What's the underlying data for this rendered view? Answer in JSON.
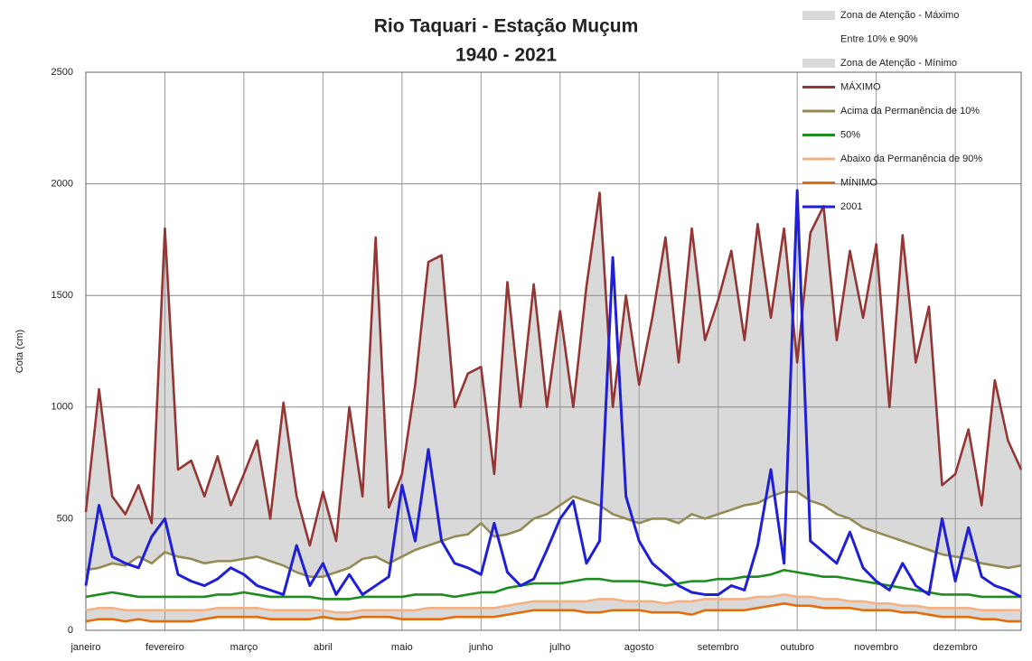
{
  "chart_data": {
    "type": "line",
    "title": "Rio Taquari - Estação Muçum",
    "subtitle": "1940 - 2021",
    "y_label": "Cota (cm)",
    "ylim": [
      0,
      2500
    ],
    "yticks": [
      0,
      500,
      1000,
      1500,
      2000,
      2500
    ],
    "grid": true,
    "legend": "top-right",
    "categories": [
      "janeiro",
      null,
      null,
      null,
      null,
      null,
      "fevereiro",
      null,
      null,
      null,
      null,
      null,
      "março",
      null,
      null,
      null,
      null,
      null,
      "abril",
      null,
      null,
      null,
      null,
      null,
      "maio",
      null,
      null,
      null,
      null,
      null,
      "junho",
      null,
      null,
      null,
      null,
      null,
      "julho",
      null,
      null,
      null,
      null,
      null,
      "agosto",
      null,
      null,
      null,
      null,
      null,
      "setembro",
      null,
      null,
      null,
      null,
      null,
      "outubro",
      null,
      null,
      null,
      null,
      null,
      "novembro",
      null,
      null,
      null,
      null,
      null,
      "dezembro",
      null,
      null,
      null,
      null,
      null
    ],
    "zones": [
      {
        "name": "Zona de Atenção - Máximo",
        "color": "#d9d9d9"
      },
      {
        "name": "Zona de Atenção - Mínimo",
        "color": "#d9d9d9"
      }
    ],
    "zone_note": "Entre 10% e 90%",
    "series": [
      {
        "name": "MÁXIMO",
        "color": "#943634",
        "values": [
          530,
          1080,
          600,
          520,
          650,
          480,
          1800,
          720,
          760,
          600,
          780,
          560,
          700,
          850,
          500,
          1020,
          600,
          380,
          620,
          400,
          1000,
          600,
          1760,
          550,
          700,
          1100,
          1650,
          1680,
          1000,
          1150,
          1180,
          700,
          1560,
          1000,
          1550,
          1000,
          1430,
          1000,
          1540,
          1960,
          1000,
          1500,
          1100,
          1400,
          1760,
          1200,
          1800,
          1300,
          1480,
          1700,
          1300,
          1820,
          1400,
          1800,
          1200,
          1780,
          1900,
          1300,
          1700,
          1400,
          1730,
          1000,
          1770,
          1200,
          1450,
          650,
          700,
          900,
          560,
          1120,
          850,
          720
        ]
      },
      {
        "name": "Acima da Permanência de 10%",
        "color": "#948a54",
        "values": [
          270,
          280,
          300,
          290,
          330,
          300,
          350,
          330,
          320,
          300,
          310,
          310,
          320,
          330,
          310,
          290,
          260,
          240,
          240,
          260,
          280,
          320,
          330,
          300,
          330,
          360,
          380,
          400,
          420,
          430,
          480,
          420,
          430,
          450,
          500,
          520,
          560,
          600,
          580,
          560,
          520,
          500,
          480,
          500,
          500,
          480,
          520,
          500,
          520,
          540,
          560,
          570,
          600,
          620,
          620,
          580,
          560,
          520,
          500,
          460,
          440,
          420,
          400,
          380,
          360,
          340,
          330,
          320,
          300,
          290,
          280,
          290
        ]
      },
      {
        "name": "50%",
        "color": "#1e8c1e",
        "values": [
          150,
          160,
          170,
          160,
          150,
          150,
          150,
          150,
          150,
          150,
          160,
          160,
          170,
          160,
          150,
          150,
          150,
          150,
          140,
          140,
          140,
          150,
          150,
          150,
          150,
          160,
          160,
          160,
          150,
          160,
          170,
          170,
          190,
          200,
          210,
          210,
          210,
          220,
          230,
          230,
          220,
          220,
          220,
          210,
          200,
          210,
          220,
          220,
          230,
          230,
          240,
          240,
          250,
          270,
          260,
          250,
          240,
          240,
          230,
          220,
          210,
          200,
          190,
          180,
          170,
          160,
          160,
          160,
          150,
          150,
          150,
          150
        ]
      },
      {
        "name": "Abaixo da Permanência de 90%",
        "color": "#f4b183",
        "values": [
          90,
          100,
          100,
          90,
          90,
          90,
          90,
          90,
          90,
          90,
          100,
          100,
          100,
          100,
          90,
          90,
          90,
          90,
          90,
          80,
          80,
          90,
          90,
          90,
          90,
          90,
          100,
          100,
          100,
          100,
          100,
          100,
          110,
          120,
          130,
          130,
          130,
          130,
          130,
          140,
          140,
          130,
          130,
          130,
          120,
          130,
          130,
          140,
          140,
          140,
          140,
          150,
          150,
          160,
          150,
          150,
          140,
          140,
          130,
          130,
          120,
          120,
          110,
          110,
          100,
          100,
          100,
          100,
          90,
          90,
          90,
          90
        ]
      },
      {
        "name": "MÍNIMO",
        "color": "#e46c0a",
        "values": [
          40,
          50,
          50,
          40,
          50,
          40,
          40,
          40,
          40,
          50,
          60,
          60,
          60,
          60,
          50,
          50,
          50,
          50,
          60,
          50,
          50,
          60,
          60,
          60,
          50,
          50,
          50,
          50,
          60,
          60,
          60,
          60,
          70,
          80,
          90,
          90,
          90,
          90,
          80,
          80,
          90,
          90,
          90,
          80,
          80,
          80,
          70,
          90,
          90,
          90,
          90,
          100,
          110,
          120,
          110,
          110,
          100,
          100,
          100,
          90,
          90,
          90,
          80,
          80,
          70,
          60,
          60,
          60,
          50,
          50,
          40,
          40
        ]
      },
      {
        "name": "2001",
        "color": "#1f1fd6",
        "values": [
          200,
          560,
          330,
          300,
          280,
          420,
          500,
          250,
          220,
          200,
          230,
          280,
          250,
          200,
          180,
          160,
          380,
          200,
          300,
          160,
          250,
          160,
          200,
          240,
          650,
          400,
          810,
          400,
          300,
          280,
          250,
          480,
          260,
          200,
          230,
          360,
          500,
          580,
          300,
          400,
          1670,
          600,
          400,
          300,
          250,
          200,
          170,
          160,
          160,
          200,
          180,
          380,
          720,
          300,
          1970,
          400,
          350,
          300,
          440,
          280,
          220,
          180,
          300,
          200,
          160,
          500,
          220,
          460,
          240,
          200,
          180,
          150
        ]
      }
    ]
  }
}
